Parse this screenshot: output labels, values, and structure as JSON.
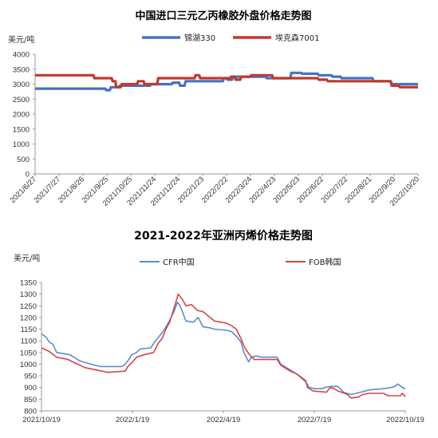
{
  "chart_data": [
    {
      "type": "line",
      "title": "中国进口三元乙丙橡胶外盘价格走势图",
      "ylabel": "美元/吨",
      "xlabel": "",
      "ylim": [
        0,
        4000
      ],
      "yticks": [
        "0",
        "500",
        "1000",
        "1500",
        "2000",
        "2500",
        "3000",
        "3500",
        "4000"
      ],
      "xticks": [
        "2021/6/27",
        "2021/7/27",
        "2021/8/26",
        "2021/9/25",
        "2021/10/25",
        "2021/11/24",
        "2021/12/24",
        "2022/1/23",
        "2022/2/22",
        "2022/3/24",
        "2022/4/23",
        "2022/5/23",
        "2022/6/22",
        "2022/7/22",
        "2022/8/21",
        "2022/9/20",
        "2022/10/20"
      ],
      "grid": false,
      "legend": "top-right",
      "series": [
        {
          "name": "锦湖330",
          "color": "#4472c4",
          "points": [
            [
              0,
              2850
            ],
            [
              77,
              2850
            ],
            [
              78,
              2800
            ],
            [
              82,
              2800
            ],
            [
              83,
              2900
            ],
            [
              92,
              2900
            ],
            [
              93,
              2950
            ],
            [
              110,
              2950
            ],
            [
              111,
              2950
            ],
            [
              126,
              2950
            ],
            [
              127,
              3000
            ],
            [
              150,
              3000
            ],
            [
              151,
              3050
            ],
            [
              158,
              3050
            ],
            [
              159,
              2950
            ],
            [
              164,
              2950
            ],
            [
              165,
              3100
            ],
            [
              206,
              3100
            ],
            [
              207,
              3200
            ],
            [
              210,
              3200
            ],
            [
              211,
              3150
            ],
            [
              216,
              3150
            ],
            [
              217,
              3250
            ],
            [
              253,
              3250
            ],
            [
              254,
              3200
            ],
            [
              280,
              3200
            ],
            [
              281,
              3380
            ],
            [
              292,
              3380
            ],
            [
              293,
              3350
            ],
            [
              310,
              3350
            ],
            [
              311,
              3300
            ],
            [
              325,
              3300
            ],
            [
              326,
              3250
            ],
            [
              335,
              3250
            ],
            [
              336,
              3200
            ],
            [
              370,
              3200
            ],
            [
              371,
              3100
            ],
            [
              390,
              3100
            ],
            [
              391,
              3000
            ],
            [
              420,
              3000
            ]
          ]
        },
        {
          "name": "埃克森7001",
          "color": "#c0392b",
          "points": [
            [
              0,
              3300
            ],
            [
              64,
              3300
            ],
            [
              65,
              3200
            ],
            [
              84,
              3200
            ],
            [
              85,
              3100
            ],
            [
              88,
              3100
            ],
            [
              89,
              2900
            ],
            [
              94,
              2900
            ],
            [
              95,
              3000
            ],
            [
              112,
              3000
            ],
            [
              113,
              3100
            ],
            [
              119,
              3100
            ],
            [
              120,
              3000
            ],
            [
              134,
              3000
            ],
            [
              135,
              3200
            ],
            [
              175,
              3200
            ],
            [
              176,
              3300
            ],
            [
              180,
              3300
            ],
            [
              181,
              3200
            ],
            [
              214,
              3200
            ],
            [
              215,
              3250
            ],
            [
              219,
              3250
            ],
            [
              220,
              3150
            ],
            [
              225,
              3150
            ],
            [
              226,
              3250
            ],
            [
              236,
              3250
            ],
            [
              237,
              3300
            ],
            [
              260,
              3300
            ],
            [
              261,
              3200
            ],
            [
              310,
              3200
            ],
            [
              311,
              3150
            ],
            [
              320,
              3150
            ],
            [
              321,
              3100
            ],
            [
              390,
              3100
            ],
            [
              391,
              2950
            ],
            [
              399,
              2950
            ],
            [
              400,
              2900
            ],
            [
              420,
              2900
            ]
          ]
        }
      ]
    },
    {
      "type": "line",
      "title": "2021-2022年亚洲丙烯价格走势图",
      "ylabel": "美元/吨",
      "xlabel": "",
      "ylim": [
        800,
        1350
      ],
      "yticks": [
        "800",
        "850",
        "900",
        "950",
        "1000",
        "1050",
        "1100",
        "1150",
        "1200",
        "1250",
        "1300",
        "1350"
      ],
      "xticks": [
        "2021/10/19",
        "2022/1/19",
        "2022/4/19",
        "2022/7/19",
        "2022/10/19"
      ],
      "grid": false,
      "legend": "top",
      "series": [
        {
          "name": "CFR中国",
          "color": "#5b8ec9",
          "points": [
            [
              0,
              1130
            ],
            [
              5,
              1115
            ],
            [
              8,
              1095
            ],
            [
              12,
              1085
            ],
            [
              16,
              1050
            ],
            [
              30,
              1040
            ],
            [
              40,
              1015
            ],
            [
              52,
              1000
            ],
            [
              62,
              990
            ],
            [
              85,
              990
            ],
            [
              88,
              1000
            ],
            [
              92,
              1020
            ],
            [
              95,
              1040
            ],
            [
              100,
              1050
            ],
            [
              104,
              1065
            ],
            [
              115,
              1070
            ],
            [
              120,
              1100
            ],
            [
              128,
              1140
            ],
            [
              134,
              1180
            ],
            [
              140,
              1230
            ],
            [
              143,
              1265
            ],
            [
              146,
              1250
            ],
            [
              152,
              1185
            ],
            [
              160,
              1180
            ],
            [
              165,
              1200
            ],
            [
              170,
              1160
            ],
            [
              178,
              1155
            ],
            [
              182,
              1150
            ],
            [
              195,
              1145
            ],
            [
              200,
              1140
            ],
            [
              205,
              1120
            ],
            [
              210,
              1095
            ],
            [
              213,
              1050
            ],
            [
              218,
              1010
            ],
            [
              221,
              1030
            ],
            [
              226,
              1035
            ],
            [
              232,
              1030
            ],
            [
              248,
              1030
            ],
            [
              252,
              1000
            ],
            [
              262,
              975
            ],
            [
              268,
              960
            ],
            [
              278,
              925
            ],
            [
              282,
              900
            ],
            [
              288,
              895
            ],
            [
              296,
              895
            ],
            [
              298,
              900
            ],
            [
              305,
              905
            ],
            [
              312,
              905
            ],
            [
              318,
              880
            ],
            [
              326,
              870
            ],
            [
              336,
              880
            ],
            [
              345,
              890
            ],
            [
              360,
              895
            ],
            [
              368,
              900
            ],
            [
              372,
              905
            ],
            [
              375,
              915
            ],
            [
              380,
              900
            ],
            [
              383,
              895
            ]
          ]
        },
        {
          "name": "FOB韩国",
          "color": "#d64545",
          "points": [
            [
              0,
              1070
            ],
            [
              8,
              1055
            ],
            [
              16,
              1030
            ],
            [
              28,
              1020
            ],
            [
              38,
              1000
            ],
            [
              46,
              985
            ],
            [
              58,
              975
            ],
            [
              70,
              965
            ],
            [
              88,
              970
            ],
            [
              91,
              990
            ],
            [
              96,
              1010
            ],
            [
              100,
              1030
            ],
            [
              108,
              1040
            ],
            [
              118,
              1050
            ],
            [
              123,
              1090
            ],
            [
              127,
              1110
            ],
            [
              131,
              1150
            ],
            [
              135,
              1180
            ],
            [
              141,
              1260
            ],
            [
              144,
              1300
            ],
            [
              148,
              1280
            ],
            [
              152,
              1250
            ],
            [
              158,
              1255
            ],
            [
              164,
              1230
            ],
            [
              170,
              1225
            ],
            [
              176,
              1205
            ],
            [
              182,
              1185
            ],
            [
              195,
              1175
            ],
            [
              200,
              1165
            ],
            [
              205,
              1150
            ],
            [
              210,
              1110
            ],
            [
              214,
              1070
            ],
            [
              219,
              1040
            ],
            [
              224,
              1020
            ],
            [
              248,
              1020
            ],
            [
              252,
              995
            ],
            [
              262,
              970
            ],
            [
              268,
              960
            ],
            [
              278,
              930
            ],
            [
              280,
              900
            ],
            [
              286,
              885
            ],
            [
              300,
              880
            ],
            [
              304,
              900
            ],
            [
              308,
              895
            ],
            [
              312,
              885
            ],
            [
              316,
              880
            ],
            [
              322,
              870
            ],
            [
              326,
              855
            ],
            [
              334,
              860
            ],
            [
              338,
              870
            ],
            [
              345,
              875
            ],
            [
              360,
              875
            ],
            [
              365,
              865
            ],
            [
              378,
              865
            ],
            [
              380,
              875
            ],
            [
              383,
              860
            ]
          ]
        }
      ]
    }
  ]
}
